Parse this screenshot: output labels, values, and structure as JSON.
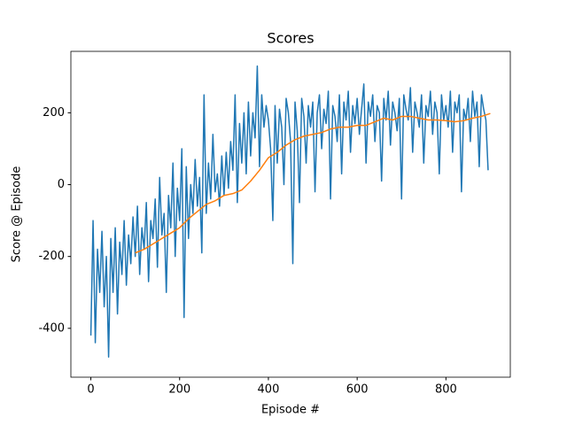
{
  "chart_data": {
    "type": "line",
    "title": "Scores",
    "x_label": "Episode #",
    "y_label": "Score @ Episode",
    "xlim": [
      -45,
      945
    ],
    "ylim": [
      -536,
      371
    ],
    "xticks": [
      0,
      200,
      400,
      600,
      800
    ],
    "yticks": [
      -400,
      -200,
      0,
      200
    ],
    "grid": false,
    "series": [
      {
        "color": "#1f77b4",
        "x": [
          0,
          5,
          10,
          15,
          20,
          25,
          30,
          35,
          40,
          45,
          50,
          55,
          60,
          65,
          70,
          75,
          80,
          85,
          90,
          95,
          100,
          105,
          110,
          115,
          120,
          125,
          130,
          135,
          140,
          145,
          150,
          155,
          160,
          165,
          170,
          175,
          180,
          185,
          190,
          195,
          200,
          205,
          210,
          215,
          220,
          225,
          230,
          235,
          240,
          245,
          250,
          255,
          260,
          265,
          270,
          275,
          280,
          285,
          290,
          295,
          300,
          305,
          310,
          315,
          320,
          325,
          330,
          335,
          340,
          345,
          350,
          355,
          360,
          365,
          370,
          375,
          380,
          385,
          390,
          395,
          400,
          405,
          410,
          415,
          420,
          425,
          430,
          435,
          440,
          445,
          450,
          455,
          460,
          465,
          470,
          475,
          480,
          485,
          490,
          495,
          500,
          505,
          510,
          515,
          520,
          525,
          530,
          535,
          540,
          545,
          550,
          555,
          560,
          565,
          570,
          575,
          580,
          585,
          590,
          595,
          600,
          605,
          610,
          615,
          620,
          625,
          630,
          635,
          640,
          645,
          650,
          655,
          660,
          665,
          670,
          675,
          680,
          685,
          690,
          695,
          700,
          705,
          710,
          715,
          720,
          725,
          730,
          735,
          740,
          745,
          750,
          755,
          760,
          765,
          770,
          775,
          780,
          785,
          790,
          795,
          800,
          805,
          810,
          815,
          820,
          825,
          830,
          835,
          840,
          845,
          850,
          855,
          860,
          865,
          870,
          875,
          880,
          885,
          890,
          895
        ],
        "values": [
          -420,
          -100,
          -440,
          -180,
          -300,
          -130,
          -340,
          -200,
          -480,
          -150,
          -300,
          -120,
          -360,
          -160,
          -250,
          -100,
          -280,
          -140,
          -220,
          -90,
          -200,
          -60,
          -250,
          -120,
          -180,
          -50,
          -270,
          -100,
          -150,
          -40,
          -230,
          20,
          -140,
          -80,
          -300,
          -30,
          -120,
          60,
          -200,
          -10,
          -100,
          100,
          -370,
          50,
          -150,
          0,
          -80,
          70,
          -60,
          20,
          -190,
          250,
          -80,
          60,
          -40,
          140,
          -20,
          30,
          -60,
          80,
          -30,
          90,
          -10,
          120,
          40,
          250,
          -50,
          170,
          60,
          200,
          30,
          230,
          80,
          200,
          130,
          330,
          50,
          250,
          160,
          220,
          180,
          100,
          -100,
          220,
          60,
          210,
          160,
          0,
          240,
          200,
          120,
          -220,
          230,
          150,
          -50,
          240,
          190,
          60,
          220,
          160,
          230,
          -20,
          200,
          250,
          100,
          210,
          170,
          260,
          -40,
          220,
          190,
          120,
          250,
          30,
          230,
          180,
          260,
          90,
          220,
          170,
          240,
          140,
          210,
          280,
          60,
          230,
          190,
          250,
          120,
          220,
          200,
          10,
          240,
          180,
          260,
          110,
          230,
          200,
          150,
          240,
          -40,
          250,
          210,
          180,
          270,
          90,
          230,
          200,
          160,
          250,
          60,
          220,
          190,
          260,
          140,
          230,
          200,
          30,
          250,
          180,
          220,
          160,
          260,
          90,
          230,
          200,
          250,
          -20,
          210,
          180,
          240,
          120,
          260,
          190,
          230,
          50,
          250,
          210,
          180,
          40
        ]
      },
      {
        "color": "#ff7f0e",
        "x": [
          100,
          120,
          140,
          160,
          180,
          200,
          220,
          240,
          260,
          280,
          300,
          320,
          340,
          360,
          380,
          400,
          420,
          440,
          460,
          480,
          500,
          520,
          540,
          560,
          580,
          600,
          620,
          640,
          660,
          680,
          700,
          720,
          740,
          760,
          780,
          800,
          820,
          840,
          860,
          880,
          900
        ],
        "values": [
          -190,
          -180,
          -165,
          -150,
          -135,
          -120,
          -95,
          -75,
          -55,
          -45,
          -30,
          -25,
          -15,
          10,
          40,
          75,
          90,
          110,
          125,
          135,
          140,
          145,
          155,
          160,
          160,
          165,
          165,
          175,
          185,
          180,
          190,
          190,
          185,
          180,
          180,
          178,
          175,
          178,
          185,
          190,
          198
        ]
      }
    ]
  }
}
